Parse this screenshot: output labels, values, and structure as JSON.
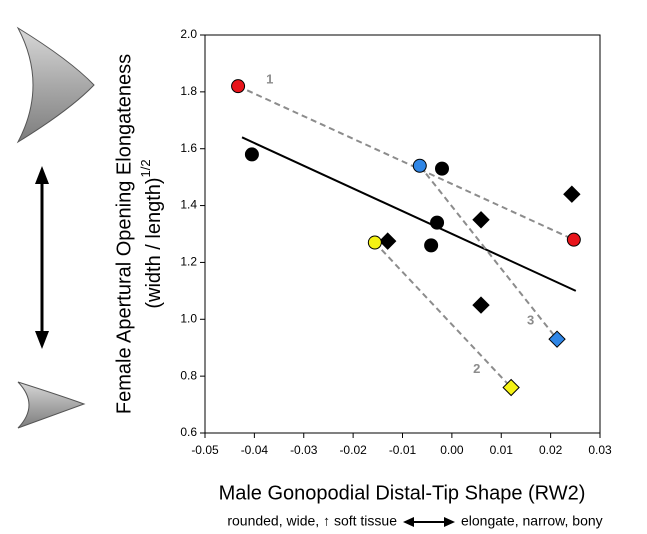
{
  "chart_data": {
    "type": "scatter",
    "y_label": "Female Apertural Opening Elongateness",
    "y_label_line2": "(width / length)",
    "y_label_sup": "1/2",
    "x_label": "Male Gonopodial Distal-Tip Shape (RW2)",
    "x_caption_left": "rounded, wide, ↑ soft tissue",
    "x_caption_right": "elongate, narrow, bony",
    "xlim": [
      -0.05,
      0.03
    ],
    "xticks": [
      -0.05,
      -0.04,
      -0.03,
      -0.02,
      -0.01,
      {
        "value": 0,
        "label": "0.00"
      },
      0.01,
      0.02,
      0.03
    ],
    "ylim": [
      0.6,
      2.0
    ],
    "yticks": [
      0.6,
      0.8,
      {
        "value": 1,
        "label": "1.0"
      },
      1.2,
      1.4,
      1.6,
      1.8,
      {
        "value": 2,
        "label": "2.0"
      }
    ],
    "series": [
      {
        "marker": "circle",
        "color": "#000000",
        "x": [
          -0.0405,
          -0.002,
          -0.003,
          -0.0042
        ],
        "values": [
          1.58,
          1.53,
          1.34,
          1.26
        ]
      },
      {
        "marker": "diamond",
        "color": "#000000",
        "x": [
          -0.013,
          0.0059,
          0.0243,
          0.0059
        ],
        "values": [
          1.275,
          1.35,
          1.44,
          1.05
        ]
      }
    ],
    "pairs": [
      {
        "label": "1",
        "color": "#e8141b",
        "markers": [
          "circle",
          "circle"
        ],
        "x": [
          -0.0433,
          0.0247
        ],
        "values": [
          1.82,
          1.28
        ]
      },
      {
        "label": "2",
        "color": "#f5f215",
        "markers": [
          "circle",
          "diamond"
        ],
        "x": [
          -0.0156,
          0.012
        ],
        "values": [
          1.27,
          0.76
        ]
      },
      {
        "label": "3",
        "color": "#2f86e6",
        "markers": [
          "circle",
          "diamond"
        ],
        "x": [
          -0.0065,
          0.0213
        ],
        "values": [
          1.54,
          0.93
        ]
      }
    ],
    "trend": {
      "x": [
        -0.0425,
        0.0251
      ],
      "values": [
        1.64,
        1.1
      ]
    }
  }
}
